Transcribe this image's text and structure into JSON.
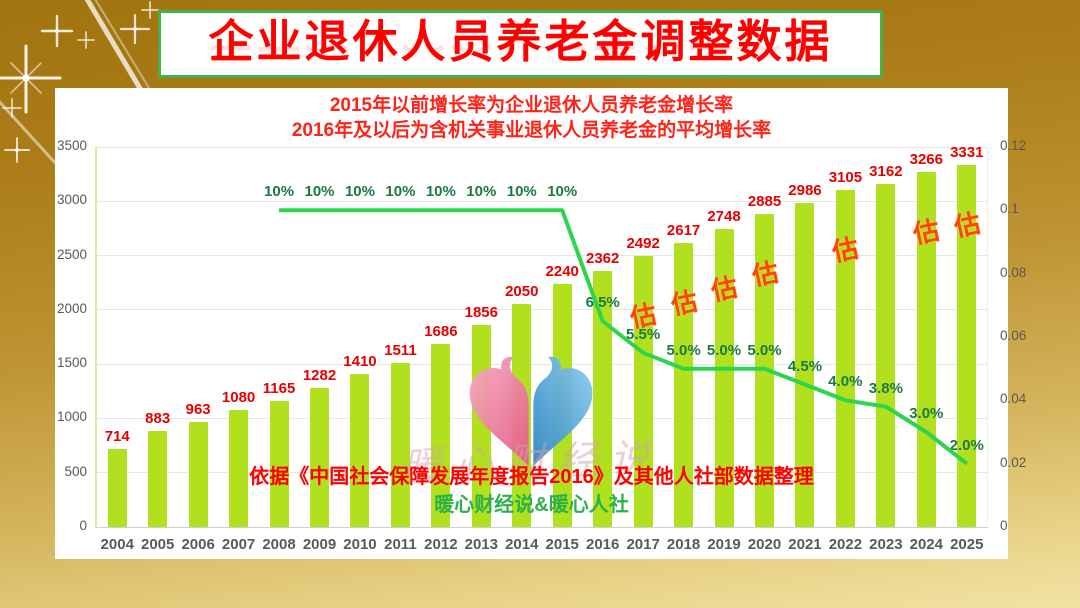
{
  "header": {
    "title": "企业退休人员养老金调整数据"
  },
  "chart_data": {
    "type": "bar",
    "title": "企业退休人员养老金调整数据",
    "subtitle_line1": "2015年以前增长率为企业退休人员养老金增长率",
    "subtitle_line2": "2016年及以后为含机关事业退休人员养老金的平均增长率",
    "categories": [
      "2004",
      "2005",
      "2006",
      "2007",
      "2008",
      "2009",
      "2010",
      "2011",
      "2012",
      "2013",
      "2014",
      "2015",
      "2016",
      "2017",
      "2018",
      "2019",
      "2020",
      "2021",
      "2022",
      "2023",
      "2024",
      "2025"
    ],
    "bar_series": {
      "name": "企业退休人员养老金",
      "values": [
        714,
        883,
        963,
        1080,
        1165,
        1282,
        1410,
        1511,
        1686,
        1856,
        2050,
        2240,
        2362,
        2492,
        2617,
        2748,
        2885,
        2986,
        3105,
        3162,
        3266,
        3331
      ]
    },
    "line_series": {
      "name": "增长率",
      "x": [
        "2008",
        "2009",
        "2010",
        "2011",
        "2012",
        "2013",
        "2014",
        "2015",
        "2016",
        "2017",
        "2018",
        "2019",
        "2020",
        "2021",
        "2022",
        "2023",
        "2024",
        "2025"
      ],
      "values": [
        0.1,
        0.1,
        0.1,
        0.1,
        0.1,
        0.1,
        0.1,
        0.1,
        0.065,
        0.055,
        0.05,
        0.05,
        0.05,
        0.045,
        0.04,
        0.038,
        0.03,
        0.02
      ],
      "labels": [
        "10%",
        "10%",
        "10%",
        "10%",
        "10%",
        "10%",
        "10%",
        "10%",
        "6.5%",
        "5.5%",
        "5.0%",
        "5.0%",
        "5.0%",
        "4.5%",
        "4.0%",
        "3.8%",
        "3.0%",
        "2.0%"
      ]
    },
    "estimate_label": "估",
    "estimate_years": [
      "2017",
      "2018",
      "2019",
      "2020",
      "2022",
      "2024",
      "2025"
    ],
    "left_axis": {
      "min": 0,
      "max": 3500,
      "ticks": [
        0,
        500,
        1000,
        1500,
        2000,
        2500,
        3000,
        3500
      ]
    },
    "right_axis": {
      "min": 0,
      "max": 0.12,
      "ticks": [
        "0",
        "0.02",
        "0.04",
        "0.06",
        "0.08",
        "0.1",
        "0.12"
      ]
    },
    "grid": true,
    "legend": "none",
    "source_note": "依据《中国社会保障发展年度报告2016》及其他人社部数据整理",
    "credit": "暖心财经说&暖心人社",
    "watermark_text": "暖心财经说",
    "colors": {
      "bar": "#b0e01e",
      "line": "#2ed44b",
      "value_label": "#e60000",
      "estimate": "#ff4500",
      "rate_label": "#1d7a3e",
      "title_red": "#ff0000",
      "subtitle_red": "#fe2419",
      "credit_green": "#2cb14a",
      "banner_border": "#45b14b",
      "background_gold": "#b98a25"
    }
  }
}
